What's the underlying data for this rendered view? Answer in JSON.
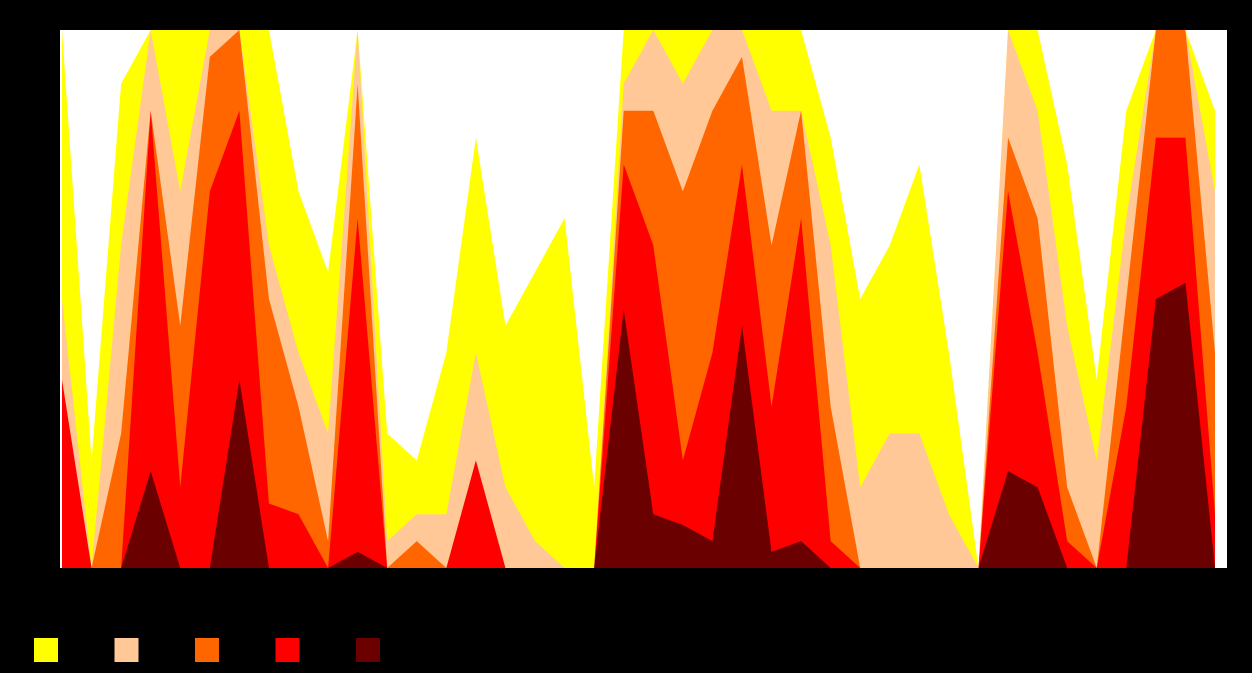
{
  "chart_data": {
    "type": "area",
    "x": [
      0,
      1,
      2,
      3,
      4,
      5,
      6,
      7,
      8,
      9,
      10,
      11,
      12,
      13,
      14,
      15,
      16,
      17,
      18,
      19,
      20,
      21,
      22,
      23,
      24,
      25,
      26,
      27,
      28,
      29,
      30,
      31,
      32,
      33,
      34,
      35,
      36,
      37,
      38,
      39
    ],
    "xlim": [
      0,
      39
    ],
    "ylim": [
      0,
      100
    ],
    "legend": "bottom-left",
    "background": "#000000",
    "plot_background": "#ffffff",
    "series": [
      {
        "color": "#ffff00",
        "values": [
          100,
          20,
          90,
          100,
          100,
          100,
          100,
          100,
          70,
          55,
          100,
          25,
          20,
          40,
          80,
          45,
          55,
          65,
          15,
          100,
          100,
          100,
          100,
          100,
          100,
          100,
          80,
          50,
          60,
          75,
          40,
          0,
          100,
          100,
          75,
          35,
          85,
          100,
          100,
          85
        ]
      },
      {
        "color": "#ffc896",
        "values": [
          50,
          0,
          60,
          100,
          70,
          100,
          100,
          60,
          40,
          25,
          100,
          5,
          10,
          10,
          40,
          15,
          5,
          0,
          0,
          90,
          100,
          90,
          100,
          100,
          85,
          85,
          60,
          15,
          25,
          25,
          10,
          0,
          100,
          85,
          45,
          20,
          65,
          100,
          100,
          70
        ]
      },
      {
        "color": "#ff6600",
        "values": [
          30,
          0,
          25,
          85,
          45,
          95,
          100,
          50,
          30,
          5,
          90,
          0,
          5,
          0,
          0,
          0,
          0,
          0,
          0,
          85,
          85,
          70,
          85,
          95,
          60,
          85,
          30,
          0,
          0,
          0,
          0,
          0,
          80,
          65,
          15,
          0,
          50,
          100,
          100,
          40
        ]
      },
      {
        "color": "#ff0000",
        "values": [
          35,
          0,
          0,
          85,
          15,
          70,
          85,
          12,
          10,
          0,
          65,
          0,
          0,
          0,
          20,
          0,
          0,
          0,
          0,
          75,
          60,
          20,
          40,
          75,
          30,
          65,
          5,
          0,
          0,
          0,
          0,
          0,
          70,
          40,
          5,
          0,
          30,
          80,
          80,
          10
        ]
      },
      {
        "color": "#6b0000",
        "values": [
          0,
          0,
          0,
          18,
          0,
          0,
          35,
          0,
          0,
          0,
          3,
          0,
          0,
          0,
          0,
          0,
          0,
          0,
          0,
          48,
          10,
          8,
          5,
          45,
          3,
          5,
          0,
          0,
          0,
          0,
          0,
          0,
          18,
          15,
          0,
          0,
          0,
          50,
          53,
          0
        ]
      }
    ]
  }
}
